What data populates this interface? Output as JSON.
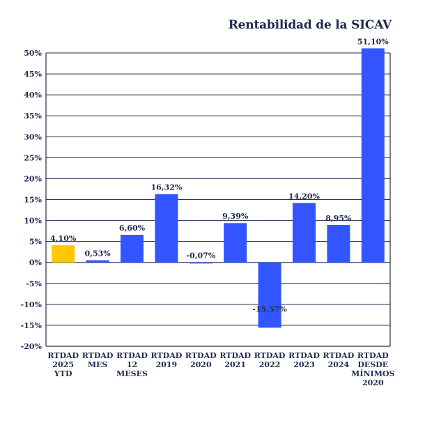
{
  "chart_data": {
    "type": "bar",
    "title": "Rentabilidad de la SICAV",
    "xlabel": "",
    "ylabel": "",
    "ylim": [
      -20,
      50
    ],
    "y_ticks": [
      "50%",
      "45%",
      "40%",
      "35%",
      "30%",
      "25%",
      "20%",
      "15%",
      "10%",
      "5%",
      "0%",
      "-5%",
      "-10%",
      "-15%",
      "-20%"
    ],
    "y_tick_values": [
      50,
      45,
      40,
      35,
      30,
      25,
      20,
      15,
      10,
      5,
      0,
      -5,
      -10,
      -15,
      -20
    ],
    "grid": true,
    "legend": "none",
    "categories": [
      [
        "RTDAD",
        "2025",
        "YTD"
      ],
      [
        "RTDAD",
        "MES"
      ],
      [
        "RTDAD",
        "12",
        "MESES"
      ],
      [
        "RTDAD",
        "2019"
      ],
      [
        "RTDAD",
        "2020"
      ],
      [
        "RTDAD",
        "2021"
      ],
      [
        "RTDAD",
        "2022"
      ],
      [
        "RTDAD",
        "2023"
      ],
      [
        "RTDAD",
        "2024"
      ],
      [
        "RTDAD",
        "DESDE",
        "MÍNIMOS",
        "2020"
      ]
    ],
    "values": [
      4.1,
      0.53,
      6.6,
      16.32,
      -0.07,
      9.39,
      -15.57,
      14.2,
      8.95,
      51.1
    ],
    "data_labels": [
      "4,10%",
      "0,53%",
      "6,60%",
      "16,32%",
      "-0,07%",
      "9,39%",
      "-15,57%",
      "14,20%",
      "8,95%",
      "51,10%"
    ],
    "colors": [
      "#ffc800",
      "#3355ff",
      "#3355ff",
      "#3355ff",
      "#3355ff",
      "#3355ff",
      "#3355ff",
      "#3355ff",
      "#3355ff",
      "#3355ff"
    ],
    "axis_color": "#1f2a4d",
    "grid_color": "#1f2a4d"
  }
}
